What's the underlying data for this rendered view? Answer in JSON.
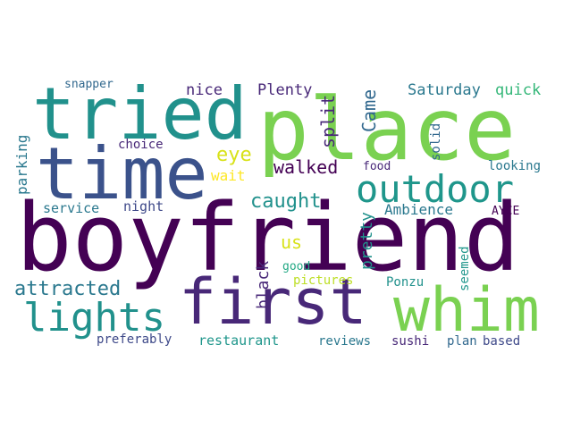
{
  "words": [
    {
      "text": "boyfriend",
      "color": "#440154",
      "rotated": false
    },
    {
      "text": "place",
      "color": "#7ad151",
      "rotated": false
    },
    {
      "text": "tried",
      "color": "#21918c",
      "rotated": false
    },
    {
      "text": "time",
      "color": "#3b528b",
      "rotated": false
    },
    {
      "text": "first",
      "color": "#482878",
      "rotated": false
    },
    {
      "text": "whim",
      "color": "#7ad151",
      "rotated": false
    },
    {
      "text": "outdoor",
      "color": "#1f968b",
      "rotated": false
    },
    {
      "text": "lights",
      "color": "#21918c",
      "rotated": false
    },
    {
      "text": "attracted",
      "color": "#2a788e",
      "rotated": false
    },
    {
      "text": "caught",
      "color": "#21918c",
      "rotated": false
    },
    {
      "text": "walked",
      "color": "#440154",
      "rotated": false
    },
    {
      "text": "eye",
      "color": "#d8e219",
      "rotated": false
    },
    {
      "text": "Came",
      "color": "#31688e",
      "rotated": true
    },
    {
      "text": "split",
      "color": "#482878",
      "rotated": true
    },
    {
      "text": "Plenty",
      "color": "#482878",
      "rotated": false
    },
    {
      "text": "nice",
      "color": "#482878",
      "rotated": false
    },
    {
      "text": "Saturday",
      "color": "#2a788e",
      "rotated": false
    },
    {
      "text": "quick",
      "color": "#35b779",
      "rotated": false
    },
    {
      "text": "snapper",
      "color": "#31688e",
      "rotated": false
    },
    {
      "text": "choice",
      "color": "#482878",
      "rotated": false
    },
    {
      "text": "parking",
      "color": "#2a788e",
      "rotated": true
    },
    {
      "text": "service",
      "color": "#2a788e",
      "rotated": false
    },
    {
      "text": "night",
      "color": "#3e4989",
      "rotated": false
    },
    {
      "text": "wait",
      "color": "#fde725",
      "rotated": false
    },
    {
      "text": "food",
      "color": "#482878",
      "rotated": false
    },
    {
      "text": "solid",
      "color": "#31688e",
      "rotated": true
    },
    {
      "text": "looking",
      "color": "#2a788e",
      "rotated": false
    },
    {
      "text": "Ambience",
      "color": "#2a788e",
      "rotated": false
    },
    {
      "text": "AYCE",
      "color": "#440154",
      "rotated": false
    },
    {
      "text": "pretty",
      "color": "#21918c",
      "rotated": true
    },
    {
      "text": "us",
      "color": "#d8e219",
      "rotated": false
    },
    {
      "text": "black",
      "color": "#482878",
      "rotated": true
    },
    {
      "text": "good",
      "color": "#22a884",
      "rotated": false
    },
    {
      "text": "pictures",
      "color": "#bddf26",
      "rotated": false
    },
    {
      "text": "Ponzu",
      "color": "#21918c",
      "rotated": false
    },
    {
      "text": "seemed",
      "color": "#1f968b",
      "rotated": true
    },
    {
      "text": "preferably",
      "color": "#3e4989",
      "rotated": false
    },
    {
      "text": "restaurant",
      "color": "#1f968b",
      "rotated": false
    },
    {
      "text": "reviews",
      "color": "#2a788e",
      "rotated": false
    },
    {
      "text": "sushi",
      "color": "#482878",
      "rotated": false
    },
    {
      "text": "plan",
      "color": "#31688e",
      "rotated": false
    },
    {
      "text": "based",
      "color": "#3e4989",
      "rotated": false
    }
  ]
}
